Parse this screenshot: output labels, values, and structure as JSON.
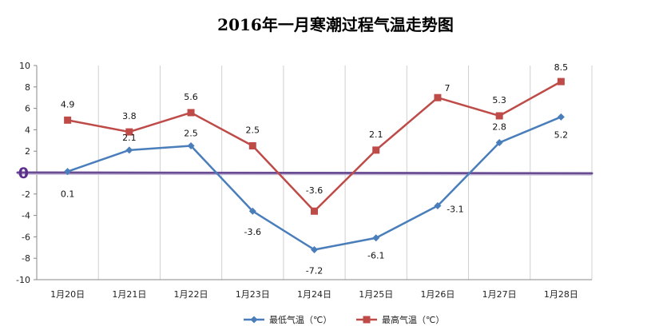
{
  "chart_data": {
    "type": "line",
    "title": "2016年一月寒潮过程气温走势图",
    "categories": [
      "1月20日",
      "1月21日",
      "1月22日",
      "1月23日",
      "1月24日",
      "1月25日",
      "1月26日",
      "1月27日",
      "1月28日"
    ],
    "ylim": [
      -10,
      10
    ],
    "ytick_step": 2,
    "yticks": [
      "-10",
      "-8",
      "-6",
      "-4",
      "-2",
      "0",
      "2",
      "4",
      "6",
      "8",
      "10"
    ],
    "grid": "vertical",
    "legend_position": "bottom",
    "zero_line": {
      "label": "0",
      "color": "#6a4c93"
    },
    "series": [
      {
        "name": "最低气温（℃）",
        "color": "#4a7ebb",
        "marker": "diamond",
        "values": [
          0.1,
          2.1,
          2.5,
          -3.6,
          -7.2,
          -6.1,
          -3.1,
          2.8,
          5.2
        ],
        "labels": [
          "0.1",
          "2.1",
          "2.5",
          "-3.6",
          "-7.2",
          "-6.1",
          "-3.1",
          "2.8",
          "5.2"
        ]
      },
      {
        "name": "最高气温（℃）",
        "color": "#be4b48",
        "marker": "square",
        "values": [
          4.9,
          3.8,
          5.6,
          2.5,
          -3.6,
          2.1,
          7,
          5.3,
          8.5
        ],
        "labels": [
          "4.9",
          "3.8",
          "5.6",
          "2.5",
          "-3.6",
          "2.1",
          "7",
          "5.3",
          "8.5"
        ]
      }
    ]
  }
}
